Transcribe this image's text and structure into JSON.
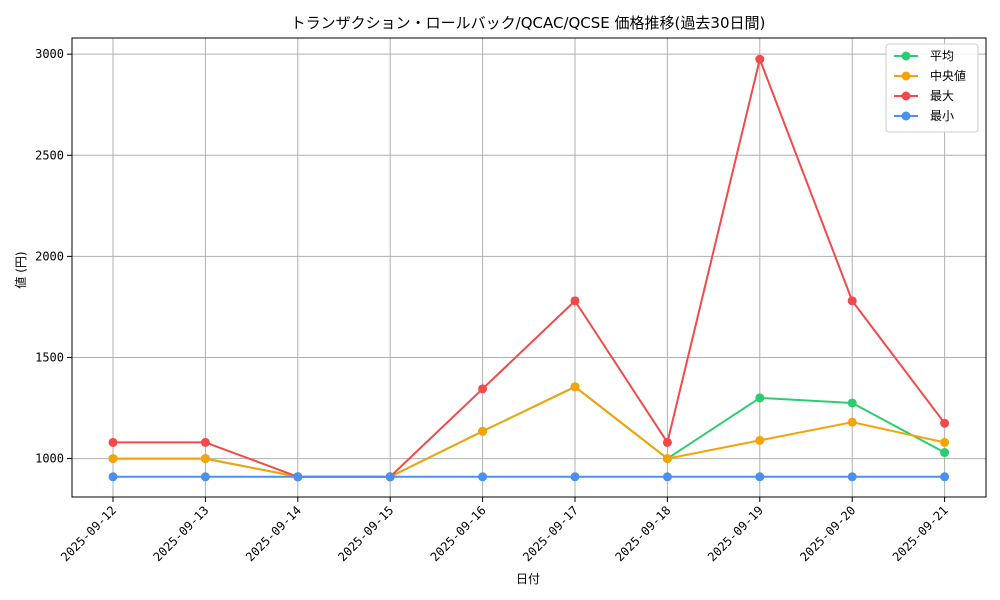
{
  "chart_data": {
    "type": "line",
    "title": "トランザクション・ロールバック/QCAC/QCSE 価格推移(過去30日間)",
    "xlabel": "日付",
    "ylabel": "値 (円)",
    "categories": [
      "2025-09-12",
      "2025-09-13",
      "2025-09-14",
      "2025-09-15",
      "2025-09-16",
      "2025-09-17",
      "2025-09-18",
      "2025-09-19",
      "2025-09-20",
      "2025-09-21"
    ],
    "ylim": [
      810,
      3080
    ],
    "yticks": [
      1000,
      1500,
      2000,
      2500,
      3000
    ],
    "grid": true,
    "legend_position": "top-right",
    "series": [
      {
        "name": "平均",
        "color": "#2ecc71",
        "values": [
          1000,
          1000,
          910,
          910,
          1135,
          1355,
          1000,
          1300,
          1275,
          1030
        ]
      },
      {
        "name": "中央値",
        "color": "#f5a30a",
        "values": [
          1000,
          1000,
          910,
          910,
          1135,
          1355,
          1000,
          1090,
          1180,
          1080
        ]
      },
      {
        "name": "最大",
        "color": "#f24a4a",
        "values": [
          1080,
          1080,
          910,
          910,
          1345,
          1780,
          1080,
          2975,
          1780,
          1175
        ]
      },
      {
        "name": "最小",
        "color": "#4a90f0",
        "values": [
          910,
          910,
          910,
          910,
          910,
          910,
          910,
          910,
          910,
          910
        ]
      }
    ]
  }
}
